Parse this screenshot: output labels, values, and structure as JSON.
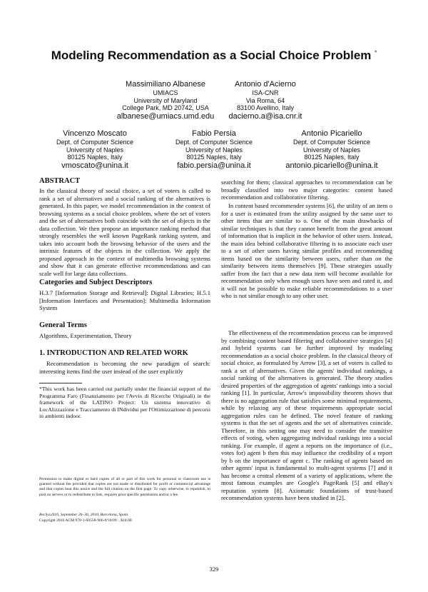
{
  "title": "Modeling Recommendation as a Social Choice Problem",
  "title_mark": "*",
  "authors": [
    {
      "name": "Massimiliano Albanese",
      "lines": [
        "UMIACS",
        "University of Maryland",
        "College Park, MD 20742, USA"
      ],
      "email": "albanese@umiacs.umd.edu"
    },
    {
      "name": "Antonio d'Acierno",
      "lines": [
        "ISA-CNR",
        "Via Roma, 64",
        "83100 Avellino, Italy"
      ],
      "email": "dacierno.a@isa.cnr.it"
    },
    {
      "name": "Vincenzo Moscato",
      "lines": [
        "Dept. of Computer Science",
        "University of Naples",
        "80125 Naples, Italy"
      ],
      "email": "vmoscato@unina.it"
    },
    {
      "name": "Fabio Persia",
      "lines": [
        "Dept. of Computer Science",
        "University of Naples",
        "80125 Naples, Italy"
      ],
      "email": "fabio.persia@unina.it"
    },
    {
      "name": "Antonio Picariello",
      "lines": [
        "Dept. of Computer Science",
        "University of Naples",
        "80125 Naples, Italy"
      ],
      "email": "antonio.picariello@unina.it"
    }
  ],
  "abstract": {
    "heading": "ABSTRACT",
    "text": "In the classical theory of social choice, a set of voters is called to rank a set of alternatives and a social ranking of the alternatives is generated. In this paper, we model recommendation in the context of browsing systems as a social choice problem, where the set of voters and the set of alternatives both coincide with the set of objects in the data collection. We then propose an importance ranking method that strongly resembles the well known PageRank ranking system, and takes into account both the browsing behavior of the users and the intrinsic features of the objects in the collection. We apply the proposed approach in the context of multimedia browsing systems and show that it can generate effective recommendations and can scale well for large data collections."
  },
  "categories": {
    "heading": "Categories and Subject Descriptors",
    "text": "H.3.7 [Information Storage and Retrieval]: Digital Libraries; H.5.1 [Information Interfaces and Presentation]: Multimedia Information System"
  },
  "general_terms": {
    "heading": "General Terms",
    "text": "Algorithms, Experimentation, Theory"
  },
  "intro": {
    "heading": "1. INTRODUCTION AND RELATED WORK",
    "paragraphs": [
      "Recommendation is becoming the new paradigm of search: interesting items find the user instead of the user explicitly",
      "searching for them; classical approaches to recommendation can be broadly classified into two major categories: content based recommendation and collaborative filtering.",
      "In content based recommender systems [6], the utility of an item o for a user is estimated from the utility assigned by the same user to other items that are similar to o. One of the main drawbacks of similar techniques is that they cannot benefit from the great amount of information that is implicit in the behavior of other users. Instead, the main idea behind collaborative filtering is to associate each user to a set of other users having similar profiles and recommending items based on the similarity between users, rather than on the similarity between items themselves [9]. These strategies usually suffer from the fact that a new data item will become available for recommendation only when enough users have seen and rated it, and it will not be possible to make reliable recommendations to a user who is not similar enough to any other user.",
      "The effectiveness of the recommendation process can be improved by combining content based filtering and collaborative strategies [4] and hybrid systems can be further improved by modeling recommendation as a social choice problem. In the classical theory of social choice, as formulated by Arrow [3], a set of voters is called to rank a set of alternatives. Given the agents' individual rankings, a social ranking of the alternatives is generated. The theory studies desired properties of the aggregation of agents' rankings into a social ranking [1]. In particular, Arrow's impossibility theorem shows that there is no aggregation rule that satisfies some minimal requirements, while by relaxing any of these requirements appropriate social aggregation rules can be defined. The novel feature of ranking systems is that the set of agents and the set of alternatives coincide. Therefore, in this setting one may need to consider the transitive effects of voting, when aggregating individual rankings into a social ranking. For example, if agent a reports on the importance of (i.e., votes for) agent b then this may influence the credibility of a report by b on the importance of agent c. The ranking of agents based on other agents' input is fundamental to multi-agent systems [7] and it has become a central element of a variety of applications, where the most famous examples are Google's PageRank [5] and eBay's reputation system [8]. Axiomatic foundations of trust-based recommendation systems have been studied in [2]."
    ]
  },
  "footnote": "*This work has been carried out partially under the financial support of the Programma Faro (Finanziamento per l'Avvio di Ricerche Originali) in the framework of the LATINO Project: Un sistema innovativo di LocAlizzazione e Tracciamento di INdividui per l'Ottimizzazione di percorsi in ambienti indoor.",
  "permission": [
    "Permission to make digital or hard copies of all or part of this work for personal or classroom use is granted without fee provided that copies are not made or distributed for profit or commercial advantage and that copies bear this notice and the full citation on the first page. To copy otherwise, to republish, to post on servers or to redistribute to lists, requires prior specific permission and/or a fee.",
    "RecSys2010, September 26–30, 2010, Barcelona, Spain.",
    "Copyright 2010 ACM 978-1-60558-906-0/10/09 ...$10.00."
  ],
  "page_number": "329"
}
